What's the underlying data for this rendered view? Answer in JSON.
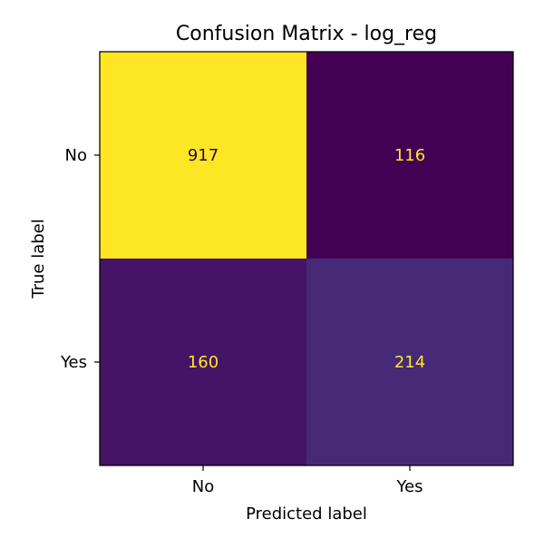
{
  "chart_data": {
    "type": "heatmap",
    "title": "Confusion Matrix - log_reg",
    "xlabel": "Predicted label",
    "ylabel": "True label",
    "x_categories": [
      "No",
      "Yes"
    ],
    "y_categories": [
      "No",
      "Yes"
    ],
    "matrix": [
      [
        917,
        116
      ],
      [
        160,
        214
      ]
    ],
    "colormap": "viridis",
    "value_range": [
      116,
      917
    ],
    "grid": false,
    "colorbar": false
  }
}
